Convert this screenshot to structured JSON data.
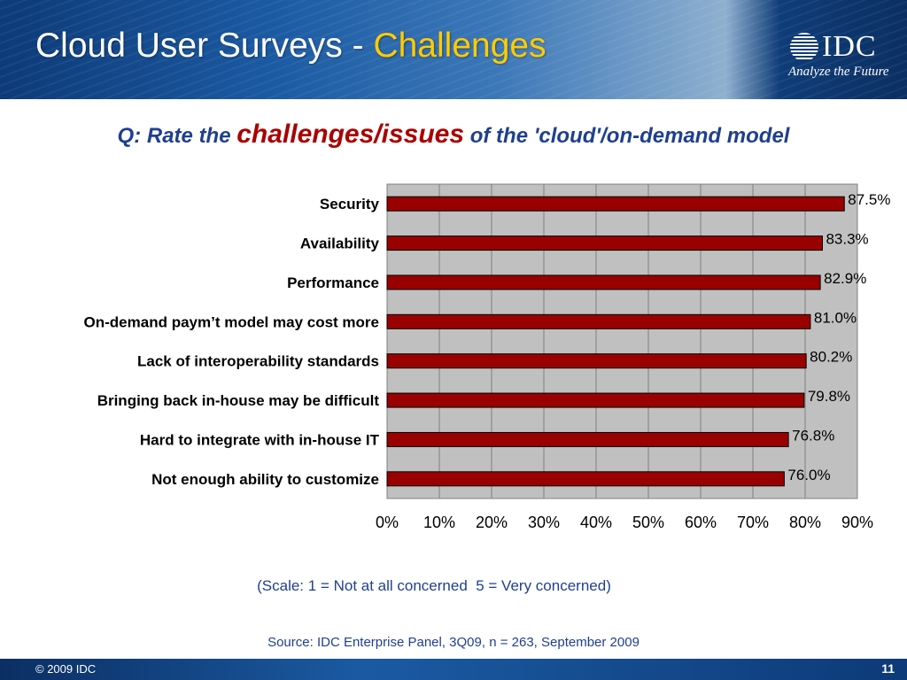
{
  "header": {
    "title_main": "Cloud User Surveys - ",
    "title_accent": "Challenges",
    "logo_text": "IDC",
    "logo_tagline": "Analyze the Future"
  },
  "question": {
    "prefix": "Q: Rate the ",
    "emphasis": "challenges/issues",
    "suffix": " of the 'cloud'/on-demand model"
  },
  "notes": {
    "scale": "(Scale: 1 = Not at all concerned  5 = Very concerned)",
    "source": "Source: IDC Enterprise Panel, 3Q09, n = 263, September 2009"
  },
  "footer": {
    "copyright": "© 2009 IDC",
    "page_number": "11"
  },
  "colors": {
    "bar_fill": "#990000",
    "plot_background": "#c0c0c0",
    "accent": "#ffcc00",
    "text_blue": "#1f3f8f"
  },
  "chart_data": {
    "type": "bar",
    "orientation": "horizontal",
    "categories": [
      "Security",
      "Availability",
      "Performance",
      "On-demand paym’t model may cost more",
      "Lack of interoperability standards",
      "Bringing back in-house may be difficult",
      "Hard to integrate with in-house IT",
      "Not enough ability to customize"
    ],
    "values": [
      87.5,
      83.3,
      82.9,
      81.0,
      80.2,
      79.8,
      76.8,
      76.0
    ],
    "data_labels": [
      "87.5%",
      "83.3%",
      "82.9%",
      "81.0%",
      "80.2%",
      "79.8%",
      "76.8%",
      "76.0%"
    ],
    "xlim": [
      0,
      90
    ],
    "xticks": [
      0,
      10,
      20,
      30,
      40,
      50,
      60,
      70,
      80,
      90
    ],
    "xtick_labels": [
      "0%",
      "10%",
      "20%",
      "30%",
      "40%",
      "50%",
      "60%",
      "70%",
      "80%",
      "90%"
    ],
    "grid": true,
    "legend": "none"
  }
}
